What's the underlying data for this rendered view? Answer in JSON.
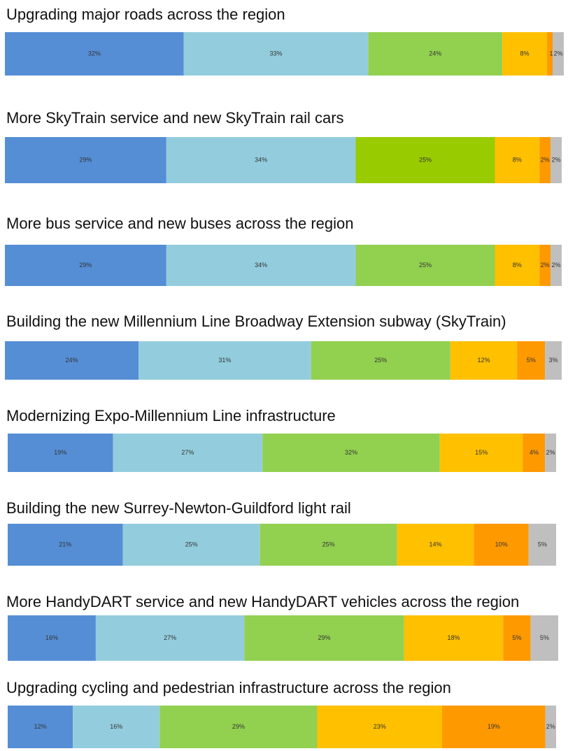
{
  "chart_data": [
    {
      "type": "stacked-bar",
      "title": "Upgrading major roads across the region",
      "values": [
        32,
        33,
        24,
        8,
        1,
        2
      ],
      "value_labels": [
        "32%",
        "33%",
        "24%",
        "8%",
        "1%",
        "2%"
      ],
      "colors": [
        "#558ed5",
        "#93cddd",
        "#92d050",
        "#ffc000",
        "#ff9900",
        "#bfbfbf"
      ]
    },
    {
      "type": "stacked-bar",
      "title": "More SkyTrain service and new SkyTrain rail cars",
      "values": [
        29,
        34,
        25,
        8,
        2,
        2
      ],
      "value_labels": [
        "29%",
        "34%",
        "25%",
        "8%",
        "2%",
        "2%"
      ],
      "colors": [
        "#558ed5",
        "#93cddd",
        "#99cc00",
        "#ffc000",
        "#ff9900",
        "#bfbfbf"
      ]
    },
    {
      "type": "stacked-bar",
      "title": "More bus service and new buses across the region",
      "values": [
        29,
        34,
        25,
        8,
        2,
        2
      ],
      "value_labels": [
        "29%",
        "34%",
        "25%",
        "8%",
        "2%",
        "2%"
      ],
      "colors": [
        "#558ed5",
        "#93cddd",
        "#92d050",
        "#ffc000",
        "#ff9900",
        "#bfbfbf"
      ]
    },
    {
      "type": "stacked-bar",
      "title": "Building the new Millennium Line Broadway Extension subway (SkyTrain)",
      "values": [
        24,
        31,
        25,
        12,
        5,
        3
      ],
      "value_labels": [
        "24%",
        "31%",
        "25%",
        "12%",
        "5%",
        "3%"
      ],
      "colors": [
        "#558ed5",
        "#93cddd",
        "#92d050",
        "#ffc000",
        "#ff9900",
        "#bfbfbf"
      ]
    },
    {
      "type": "stacked-bar",
      "title": "Modernizing Expo-Millennium Line infrastructure",
      "values": [
        19,
        27,
        32,
        15,
        4,
        2
      ],
      "value_labels": [
        "19%",
        "27%",
        "32%",
        "15%",
        "4%",
        "2%"
      ],
      "colors": [
        "#558ed5",
        "#93cddd",
        "#92d050",
        "#ffc000",
        "#ff9900",
        "#bfbfbf"
      ]
    },
    {
      "type": "stacked-bar",
      "title": "Building the new Surrey-Newton-Guildford light rail",
      "values": [
        21,
        25,
        25,
        14,
        10,
        5
      ],
      "value_labels": [
        "21%",
        "25%",
        "25%",
        "14%",
        "10%",
        "5%"
      ],
      "colors": [
        "#558ed5",
        "#93cddd",
        "#92d050",
        "#ffc000",
        "#ff9900",
        "#bfbfbf"
      ]
    },
    {
      "type": "stacked-bar",
      "title": "More HandyDART service and new HandyDART vehicles across the region",
      "values": [
        16,
        27,
        29,
        18,
        5,
        5
      ],
      "value_labels": [
        "16%",
        "27%",
        "29%",
        "18%",
        "5%",
        "5%"
      ],
      "colors": [
        "#558ed5",
        "#93cddd",
        "#92d050",
        "#ffc000",
        "#ff9900",
        "#bfbfbf"
      ]
    },
    {
      "type": "stacked-bar",
      "title": "Upgrading cycling and pedestrian infrastructure across the region",
      "values": [
        12,
        16,
        29,
        23,
        19,
        2
      ],
      "value_labels": [
        "12%",
        "16%",
        "29%",
        "23%",
        "19%",
        "2%"
      ],
      "colors": [
        "#558ed5",
        "#93cddd",
        "#92d050",
        "#ffc000",
        "#ff9900",
        "#bfbfbf"
      ]
    }
  ]
}
